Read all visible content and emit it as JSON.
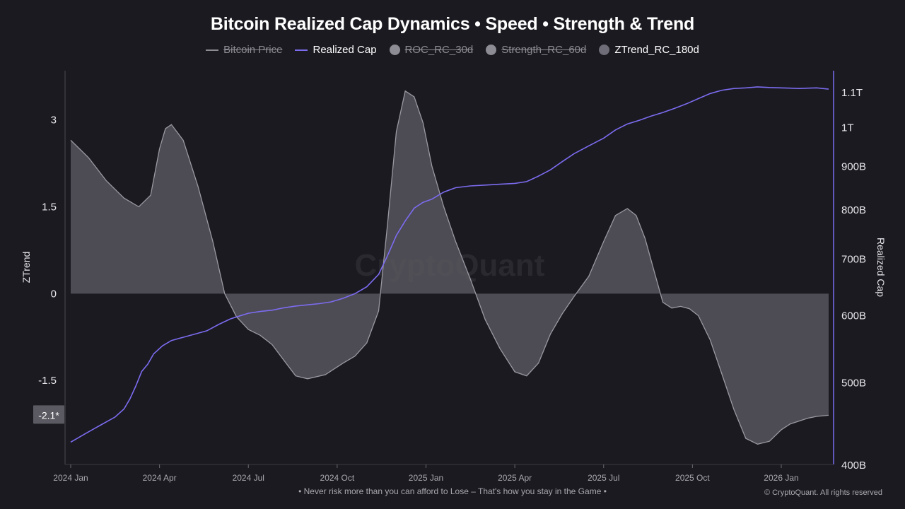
{
  "page": {
    "title": "Bitcoin Realized Cap Dynamics • Speed • Strength & Trend"
  },
  "legend": [
    {
      "label": "Bitcoin Price",
      "kind": "line",
      "color": "#8d8c94",
      "enabled": false
    },
    {
      "label": "Realized Cap",
      "kind": "line",
      "color": "#7b6cf0",
      "enabled": true
    },
    {
      "label": "ROC_RC_30d",
      "kind": "dot",
      "color": "#8d8c94",
      "enabled": false
    },
    {
      "label": "Strength_RC_60d",
      "kind": "dot",
      "color": "#8d8c94",
      "enabled": false
    },
    {
      "label": "ZTrend_RC_180d",
      "kind": "dot",
      "color": "#6f6e78",
      "enabled": true
    }
  ],
  "footer": {
    "note": "• Never risk more than you can afford to Lose – That's how you stay in the Game •",
    "copyright": "© CryptoQuant. All rights reserved"
  },
  "watermark": "CryptoQuant",
  "chart_data": {
    "type": "area",
    "title": "Bitcoin Realized Cap Dynamics • Speed • Strength & Trend",
    "x_ticks": [
      "2024 Jan",
      "2024 Apr",
      "2024 Jul",
      "2024 Oct",
      "2025 Jan",
      "2025 Apr",
      "2025 Jul",
      "2025 Oct",
      "2026 Jan"
    ],
    "x_tick_pos": [
      0,
      3,
      6,
      9,
      12,
      15,
      18,
      21,
      24
    ],
    "x_range": [
      0,
      25.6
    ],
    "x_unit": "months since 2024 Jan",
    "left_axis": {
      "label": "ZTrend",
      "ticks": [
        "3",
        "1.5",
        "0",
        "-1.5"
      ],
      "tick_values": [
        3,
        1.5,
        0,
        -1.5
      ],
      "range": [
        -2.95,
        3.85
      ]
    },
    "right_axis": {
      "label": "Realized Cap",
      "scale": "log",
      "ticks": [
        "400B",
        "500B",
        "600B",
        "700B",
        "800B",
        "900B",
        "1T",
        "1.1T"
      ],
      "tick_values": [
        400,
        500,
        600,
        700,
        800,
        900,
        1000,
        1100
      ],
      "range": [
        400,
        1165
      ]
    },
    "current_value_label": "-2.1*",
    "series": [
      {
        "name": "ZTrend_RC_180d",
        "axis": "left",
        "type": "area",
        "x": [
          0,
          0.3,
          0.6,
          1.2,
          1.8,
          2.3,
          2.7,
          3.0,
          3.2,
          3.4,
          3.8,
          4.3,
          4.8,
          5.2,
          5.6,
          6.0,
          6.4,
          6.8,
          7.2,
          7.6,
          8.0,
          8.6,
          9.2,
          9.6,
          10.0,
          10.4,
          10.7,
          11.0,
          11.3,
          11.6,
          11.9,
          12.2,
          12.6,
          13.0,
          13.5,
          14.0,
          14.5,
          15.0,
          15.4,
          15.8,
          16.2,
          16.6,
          17.0,
          17.5,
          18.0,
          18.4,
          18.8,
          19.1,
          19.4,
          19.7,
          20.0,
          20.3,
          20.6,
          20.9,
          21.2,
          21.6,
          22.0,
          22.4,
          22.8,
          23.2,
          23.6,
          24.0,
          24.3,
          24.6,
          24.9,
          25.2,
          25.6
        ],
        "y": [
          2.65,
          2.5,
          2.35,
          1.95,
          1.65,
          1.5,
          1.7,
          2.5,
          2.85,
          2.92,
          2.65,
          1.85,
          0.9,
          0.0,
          -0.4,
          -0.62,
          -0.72,
          -0.88,
          -1.15,
          -1.42,
          -1.47,
          -1.4,
          -1.2,
          -1.08,
          -0.85,
          -0.3,
          1.2,
          2.8,
          3.5,
          3.4,
          2.95,
          2.2,
          1.5,
          0.9,
          0.25,
          -0.45,
          -0.95,
          -1.35,
          -1.42,
          -1.2,
          -0.7,
          -0.35,
          -0.05,
          0.3,
          0.9,
          1.35,
          1.47,
          1.35,
          0.95,
          0.4,
          -0.15,
          -0.25,
          -0.22,
          -0.26,
          -0.38,
          -0.8,
          -1.4,
          -2.0,
          -2.5,
          -2.6,
          -2.55,
          -2.35,
          -2.25,
          -2.2,
          -2.15,
          -2.12,
          -2.1
        ]
      },
      {
        "name": "Realized Cap",
        "axis": "right",
        "type": "line",
        "unit": "B USD",
        "x": [
          0,
          0.5,
          1.0,
          1.5,
          1.8,
          2.0,
          2.2,
          2.4,
          2.6,
          2.8,
          3.1,
          3.4,
          3.8,
          4.2,
          4.6,
          5.0,
          5.4,
          5.8,
          6.0,
          6.4,
          6.8,
          7.2,
          7.6,
          8.0,
          8.4,
          8.8,
          9.2,
          9.6,
          10.0,
          10.4,
          10.7,
          11.0,
          11.3,
          11.6,
          11.9,
          12.2,
          12.6,
          13.0,
          13.5,
          14.0,
          14.5,
          15.0,
          15.4,
          15.8,
          16.2,
          16.6,
          17.0,
          17.5,
          18.0,
          18.4,
          18.8,
          19.2,
          19.6,
          20.0,
          20.4,
          20.8,
          21.2,
          21.6,
          22.0,
          22.4,
          22.8,
          23.2,
          23.6,
          24.0,
          24.3,
          24.6,
          24.9,
          25.2,
          25.6
        ],
        "y": [
          425,
          435,
          445,
          455,
          465,
          478,
          495,
          515,
          525,
          540,
          552,
          560,
          565,
          570,
          575,
          585,
          594,
          600,
          603,
          606,
          608,
          612,
          615,
          617,
          619,
          622,
          628,
          636,
          648,
          670,
          705,
          745,
          775,
          802,
          815,
          822,
          838,
          848,
          852,
          854,
          856,
          858,
          862,
          875,
          890,
          910,
          930,
          950,
          970,
          992,
          1008,
          1018,
          1030,
          1040,
          1052,
          1065,
          1080,
          1095,
          1105,
          1110,
          1112,
          1115,
          1113,
          1112,
          1111,
          1110,
          1111,
          1112,
          1108
        ]
      }
    ]
  }
}
